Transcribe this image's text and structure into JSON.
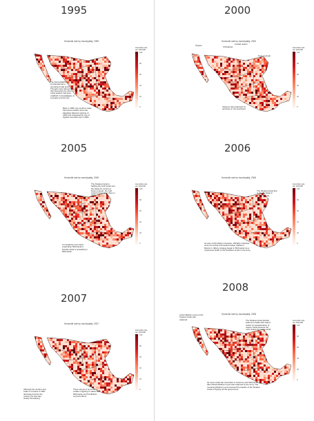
{
  "colors": {
    "palette": [
      "#fff5f0",
      "#fee0d2",
      "#fcbba1",
      "#fc9272",
      "#fb6a4a",
      "#ef3b2c",
      "#cb181d",
      "#a50f15",
      "#67000d"
    ],
    "border": "#3a3a3a",
    "divider": "#d6d6d6"
  },
  "legend": {
    "title": "Homicide rate per 100,000",
    "ticks": [
      "100",
      "80",
      "60",
      "40",
      "20",
      "0"
    ]
  },
  "panels": [
    {
      "year": "1995",
      "title": "Homicide rate by municipality, 1995",
      "intensity": 0.55,
      "annotations": [
        "The Sierra Madre Occidental had a permanent high level. Through many abuses from that Scenarios the other cartel leaders had been establish in Guadalajara, to a greater prominence.",
        "Back in 1995, the southern state has faced conflicts since the Zapatista National uprising of 1994 and subsequently one of highest homicide rate in 2001."
      ]
    },
    {
      "year": "2000",
      "title": "Homicide rate by municipality, 2000",
      "intensity": 0.35,
      "annotations": [
        "Tijuana",
        "Chihuahua",
        "Ciudad Juarez",
        "Nuevo Laredo",
        "Sinaloa",
        "Violence had organized its territories in the southwest."
      ]
    },
    {
      "year": "2005",
      "title": "Homicide rate by municipality, 2005",
      "intensity": 0.5,
      "annotations": [
        "The Sinaloa Cartel is battling the Gulf Cartel and the Zetas for control of Nuevo Laredo, the Gulf Cartel having been there in 2004.",
        "A mundanely new cartel expanding: Michoacan's Familia cartel is spreading in Michoacan."
      ]
    },
    {
      "year": "2006",
      "title": "Homicide rate by municipality, 2006",
      "intensity": 0.5,
      "annotations": [
        "The Sinaloa Cartel fled to the the Zetas in Nuevo Laredo.",
        "As was confrontation increases, officially underway since the arrival of President Felipe Calderon, Mexico's military strategy began in Michoacan as a mysterious death of the President sends in the army."
      ]
    },
    {
      "year": "2007",
      "title": "Homicide rate by municipality, 2007",
      "intensity": 0.4,
      "annotations": [
        "Although the number and scale of murders in 2007 decreased across the country the war was clearly intensifying.",
        "There seems to be some scuffle in fighting in states like Michoacan and the Beltran Leyva brothers."
      ]
    },
    {
      "year": "2008",
      "title": "Homicide rate by municipality, 2008",
      "intensity": 0.75,
      "annotations": [
        "Arturo Beltran Leyva of the Tijuana Cartel was captured.",
        "The Sinaloa Cartel divided itself as in battle with Juarez Cartel. An assassination of Juarez Cartel became the most violent city in the world.",
        "As news cartel war took place in Guerrero and Michoacan after Alfredo Beltran Leyva was captured by the army. The remaining Beltran Leyva accused the leaders of the Sinaloa Cartel of tipping off the government."
      ]
    }
  ]
}
